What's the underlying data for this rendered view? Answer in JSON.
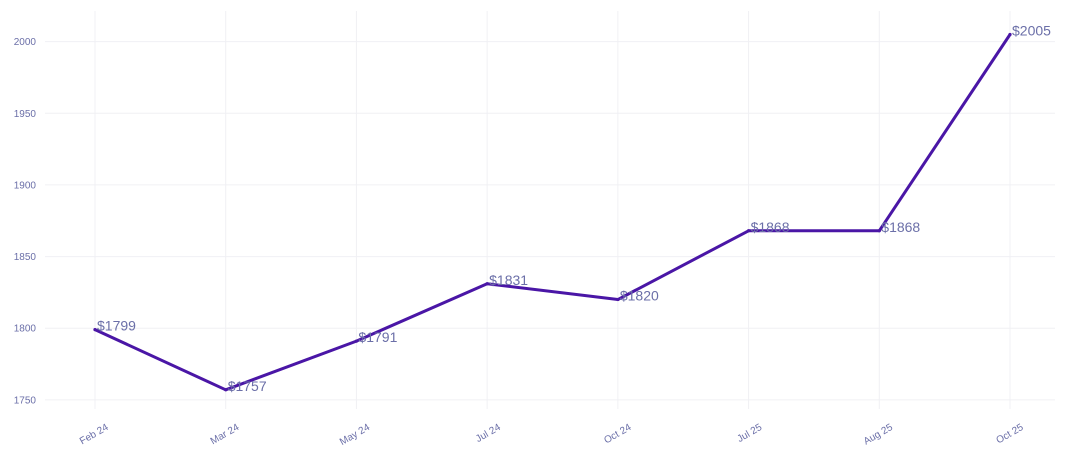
{
  "colors": {
    "line": "#4a16a6",
    "label": "#6b6fa8",
    "grid": "#f0f0f4"
  },
  "chart_data": {
    "type": "line",
    "title": "",
    "xlabel": "",
    "ylabel": "",
    "categories": [
      "Feb 24",
      "Mar 24",
      "May 24",
      "Jul 24",
      "Oct 24",
      "Jul 25",
      "Aug 25",
      "Oct 25"
    ],
    "series": [
      {
        "values": [
          1799,
          1757,
          1791,
          1831,
          1820,
          1868,
          1868,
          2005
        ],
        "labels": [
          "$1799",
          "$1757",
          "$1791",
          "$1831",
          "$1820",
          "$1868",
          "$1868",
          "$2005"
        ]
      }
    ],
    "y_ticks": [
      "1750",
      "1800",
      "1850",
      "1900",
      "1950",
      "2000"
    ],
    "ylim": [
      1745,
      2020
    ],
    "grid": true,
    "legend": "none"
  }
}
